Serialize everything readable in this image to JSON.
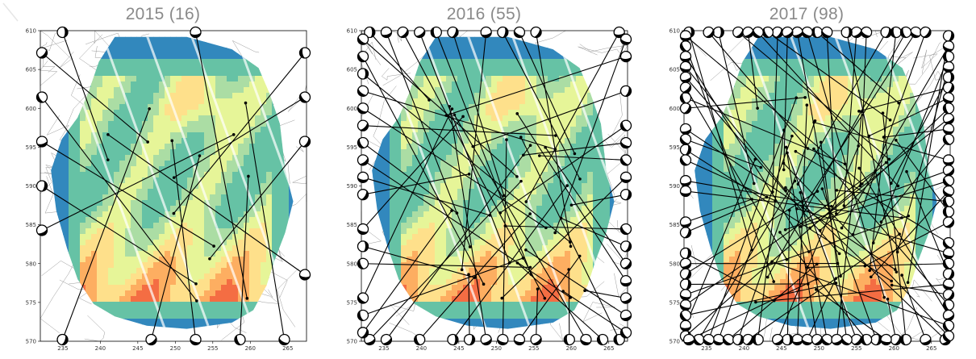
{
  "panels": [
    {
      "title": "2015 (16)"
    },
    {
      "title": "2016 (55)"
    },
    {
      "title": "2017 (98)"
    }
  ],
  "map": {
    "x_ticks": [
      "235",
      "240",
      "245",
      "250",
      "255",
      "260",
      "265"
    ],
    "y_ticks": [
      "610",
      "605",
      "600",
      "595",
      "590",
      "585",
      "580",
      "575",
      "570"
    ],
    "xlim": [
      232,
      267.5
    ],
    "ylim": [
      570,
      610
    ],
    "colormap": [
      "#5e4fa2",
      "#3288bd",
      "#66c2a5",
      "#abdda4",
      "#e6f598",
      "#fee08b",
      "#fdae61",
      "#f46d43",
      "#d53e4f",
      "#9e0142"
    ]
  }
}
